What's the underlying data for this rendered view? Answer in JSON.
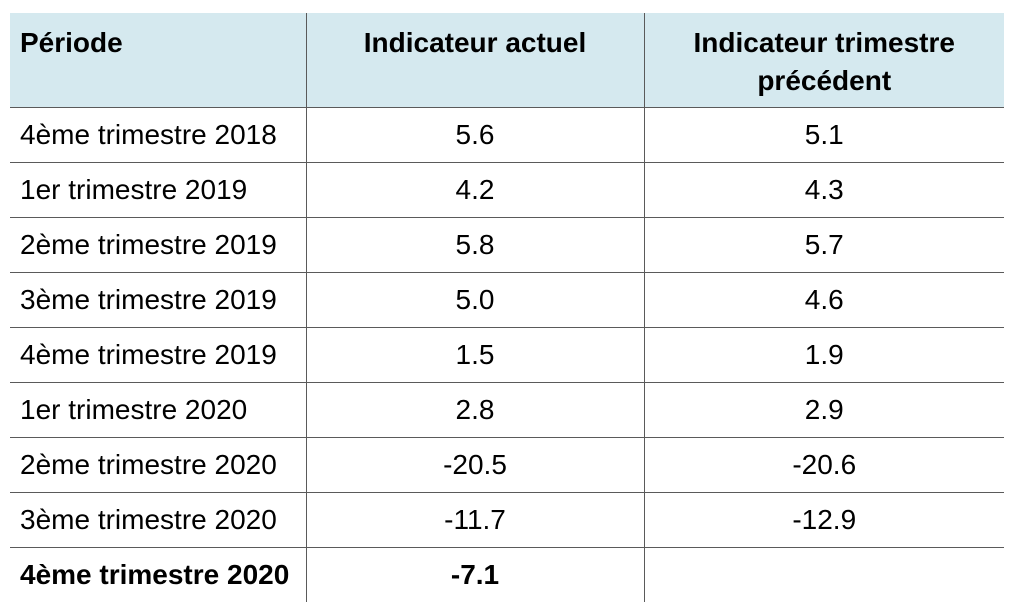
{
  "table": {
    "headers": {
      "period": "Période",
      "current": "Indicateur actuel",
      "previous_line1": "Indicateur trimestre",
      "previous_line2": "précédent"
    },
    "rows": [
      {
        "period": "4ème trimestre 2018",
        "current": "5.6",
        "previous": "5.1",
        "bold": false
      },
      {
        "period": "1er trimestre 2019",
        "current": "4.2",
        "previous": "4.3",
        "bold": false
      },
      {
        "period": "2ème trimestre 2019",
        "current": "5.8",
        "previous": "5.7",
        "bold": false
      },
      {
        "period": "3ème trimestre 2019",
        "current": "5.0",
        "previous": "4.6",
        "bold": false
      },
      {
        "period": "4ème trimestre 2019",
        "current": "1.5",
        "previous": "1.9",
        "bold": false
      },
      {
        "period": "1er trimestre 2020",
        "current": "2.8",
        "previous": "2.9",
        "bold": false
      },
      {
        "period": "2ème trimestre 2020",
        "current": "-20.5",
        "previous": "-20.6",
        "bold": false
      },
      {
        "period": "3ème trimestre 2020",
        "current": "-11.7",
        "previous": "-12.9",
        "bold": false
      },
      {
        "period": "4ème trimestre 2020",
        "current": "-7.1",
        "previous": "",
        "bold": true
      }
    ],
    "colors": {
      "header_background": "#d5e9ef",
      "grid_line": "#5a5a5a"
    }
  }
}
